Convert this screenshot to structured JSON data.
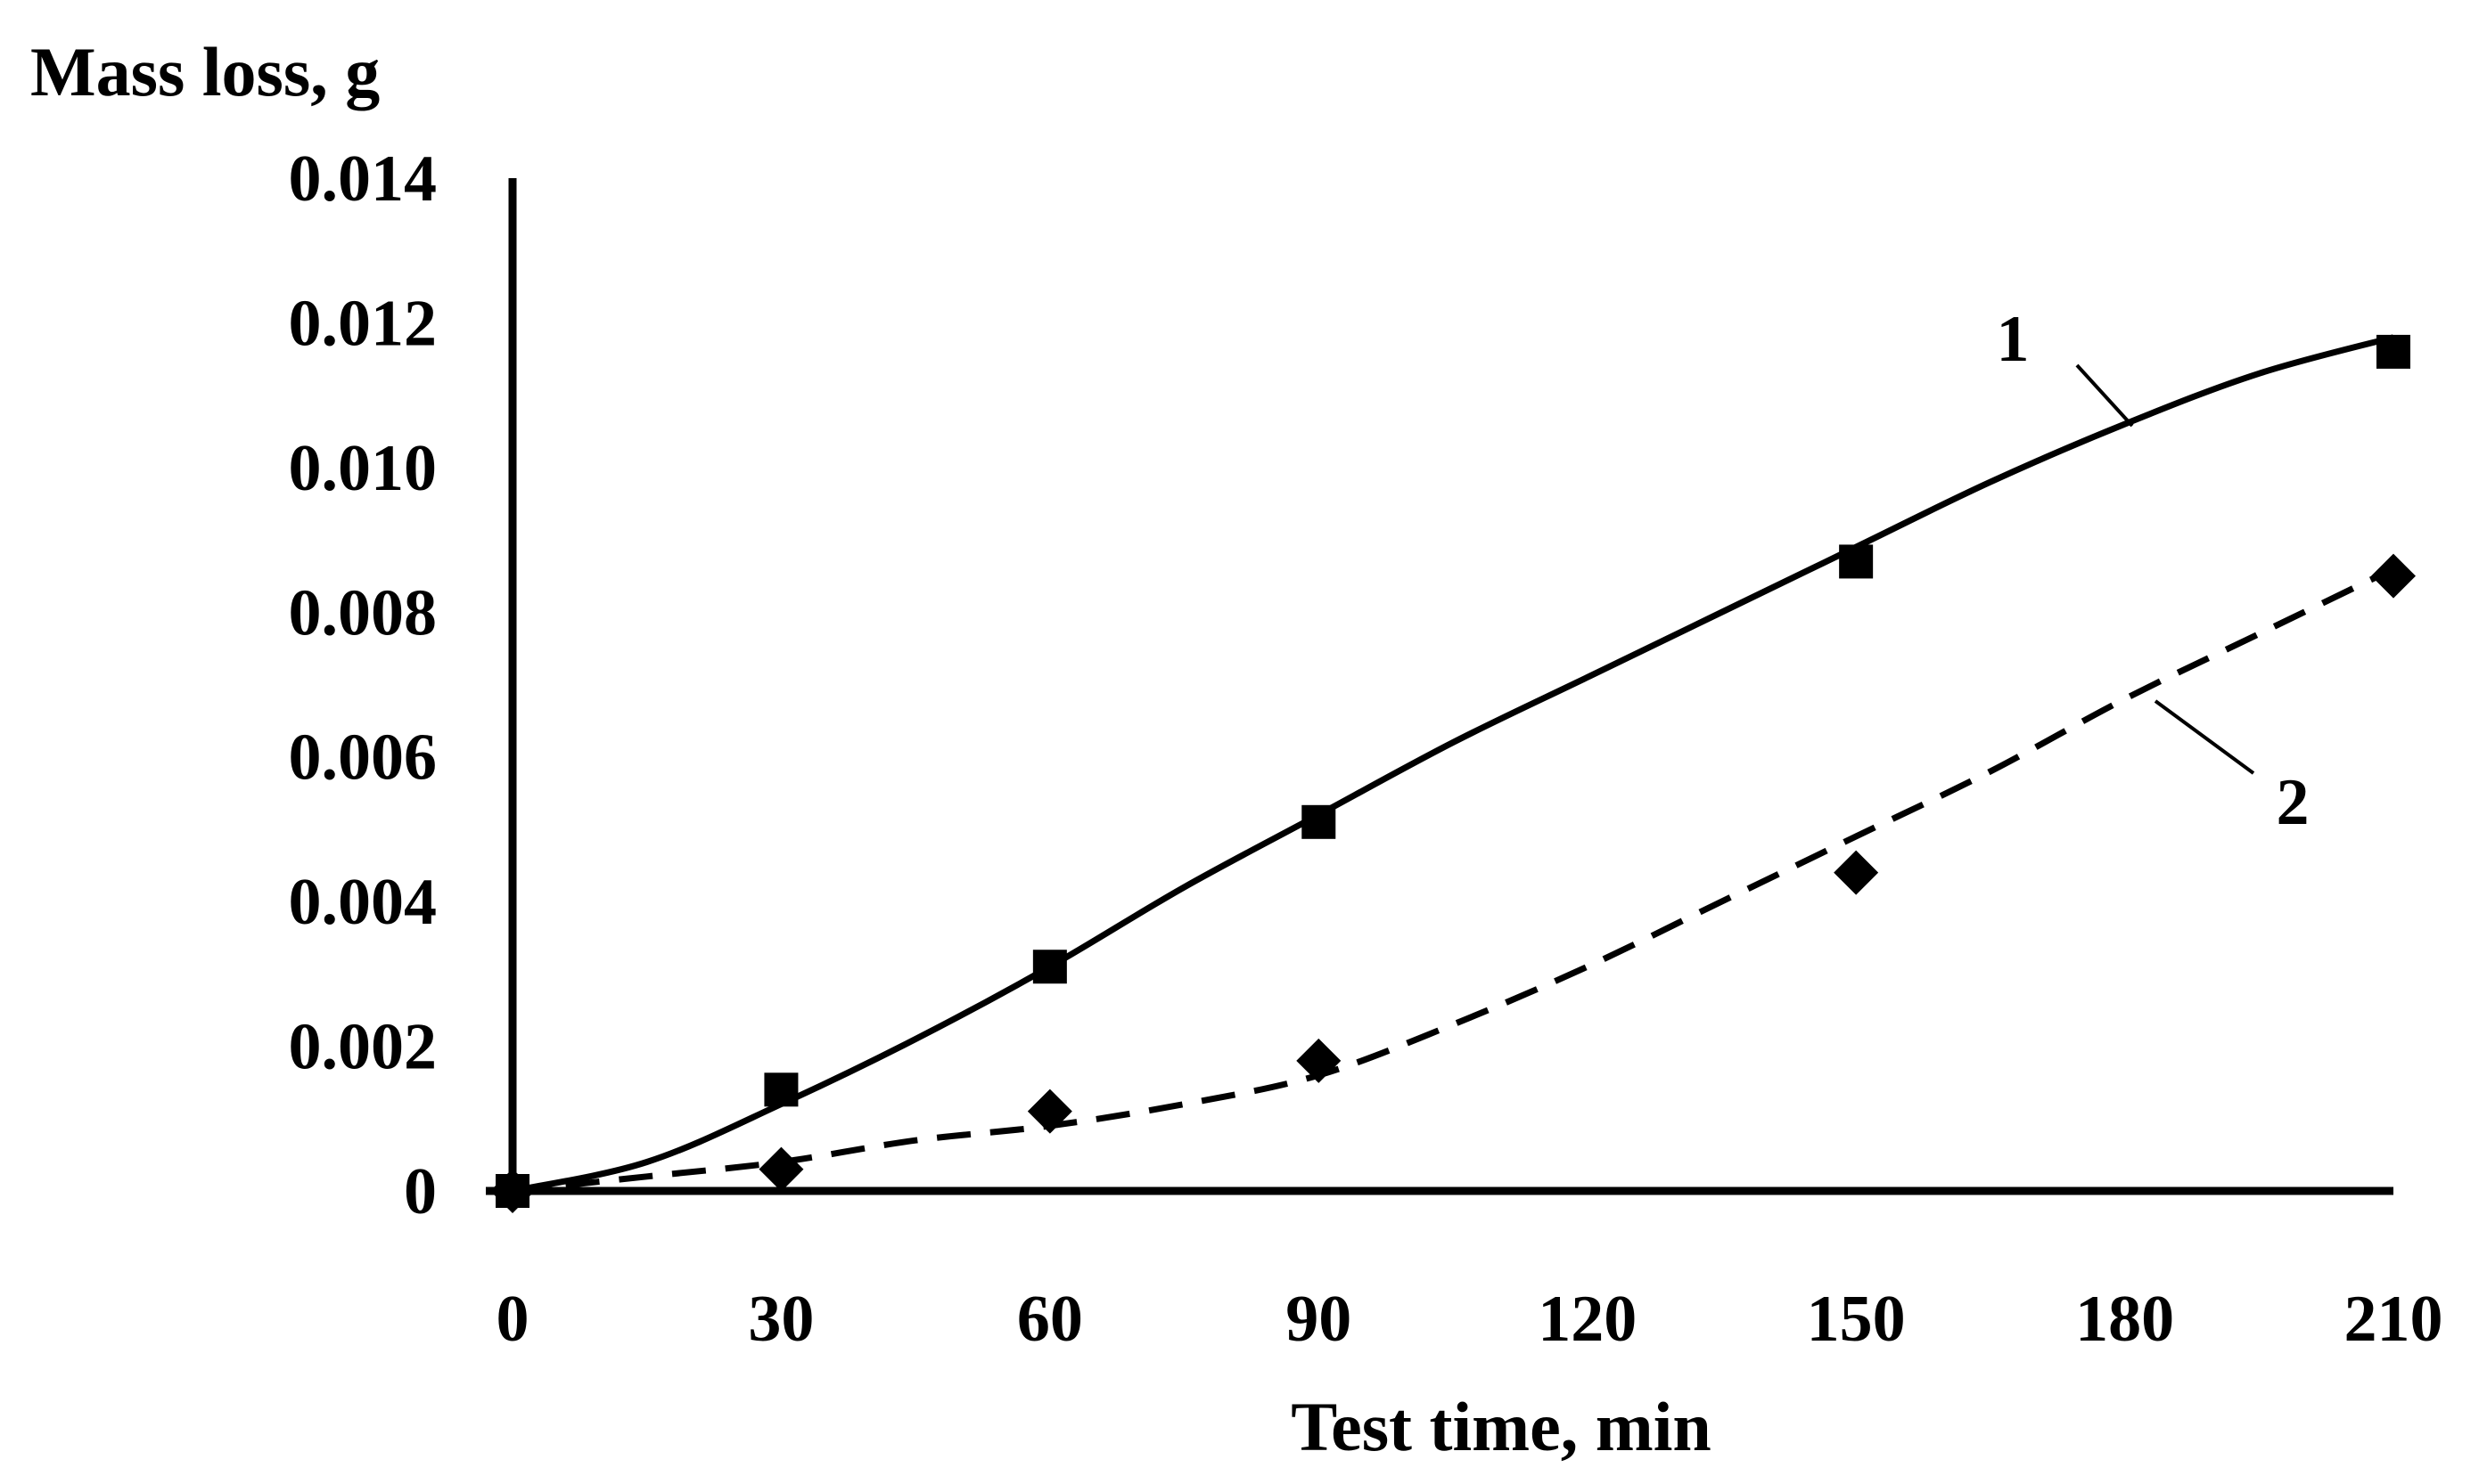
{
  "chart_data": {
    "type": "line",
    "title": "",
    "ylabel": "Mass loss, g",
    "xlabel": "Test time, min",
    "xlim": [
      0,
      210
    ],
    "ylim": [
      0,
      0.014
    ],
    "x_ticks": [
      "0",
      "30",
      "60",
      "90",
      "120",
      "150",
      "180",
      "210"
    ],
    "y_ticks": [
      "0",
      "0.002",
      "0.004",
      "0.006",
      "0.008",
      "0.010",
      "0.012",
      "0.014"
    ],
    "grid": false,
    "legend": "none",
    "series": [
      {
        "name": "1",
        "line_style": "solid",
        "marker": "square",
        "points": [
          [
            0,
            0
          ],
          [
            30,
            0.0014
          ],
          [
            60,
            0.0031
          ],
          [
            90,
            0.0051
          ],
          [
            150,
            0.0087
          ],
          [
            210,
            0.0116
          ]
        ],
        "trend": [
          [
            0,
            0
          ],
          [
            15,
            0.0004
          ],
          [
            30,
            0.0012
          ],
          [
            45,
            0.0021
          ],
          [
            60,
            0.0031
          ],
          [
            75,
            0.0042
          ],
          [
            90,
            0.0052
          ],
          [
            105,
            0.0062
          ],
          [
            120,
            0.0071
          ],
          [
            135,
            0.008
          ],
          [
            150,
            0.0089
          ],
          [
            165,
            0.0098
          ],
          [
            180,
            0.0106
          ],
          [
            195,
            0.0113
          ],
          [
            210,
            0.0118
          ]
        ]
      },
      {
        "name": "2",
        "line_style": "dashed",
        "marker": "diamond",
        "points": [
          [
            0,
            0
          ],
          [
            30,
            0.0003
          ],
          [
            60,
            0.0011
          ],
          [
            90,
            0.0018
          ],
          [
            150,
            0.0044
          ],
          [
            210,
            0.0085
          ]
        ],
        "trend": [
          [
            0,
            0
          ],
          [
            15,
            0.0002
          ],
          [
            30,
            0.0004
          ],
          [
            45,
            0.0007
          ],
          [
            60,
            0.0009
          ],
          [
            75,
            0.0012
          ],
          [
            90,
            0.0016
          ],
          [
            105,
            0.0023
          ],
          [
            120,
            0.0031
          ],
          [
            135,
            0.004
          ],
          [
            150,
            0.0049
          ],
          [
            165,
            0.0058
          ],
          [
            180,
            0.0068
          ],
          [
            195,
            0.0077
          ],
          [
            210,
            0.0086
          ]
        ]
      }
    ],
    "curve_labels": [
      "1",
      "2"
    ]
  }
}
